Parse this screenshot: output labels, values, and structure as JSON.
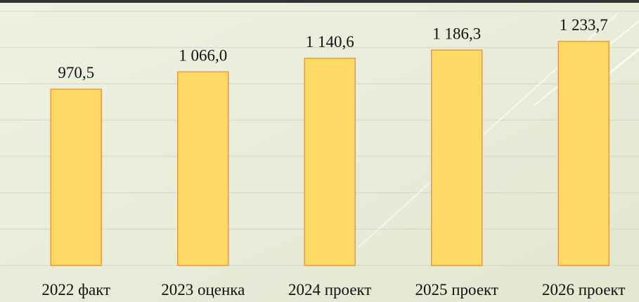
{
  "chart_data": {
    "type": "bar",
    "categories": [
      "2022 факт",
      "2023 оценка",
      "2024 проект",
      "2025 проект",
      "2026 проект"
    ],
    "values": [
      970.5,
      1066.0,
      1140.6,
      1186.3,
      1233.7
    ],
    "value_labels": [
      "970,5",
      "1 066,0",
      "1 140,6",
      "1 186,3",
      "1 233,7"
    ],
    "color": "#ffd966",
    "ylim": [
      0,
      1400
    ],
    "yticks": [
      0,
      200,
      400,
      600,
      800,
      1000,
      1200,
      1400
    ],
    "grid": true
  }
}
